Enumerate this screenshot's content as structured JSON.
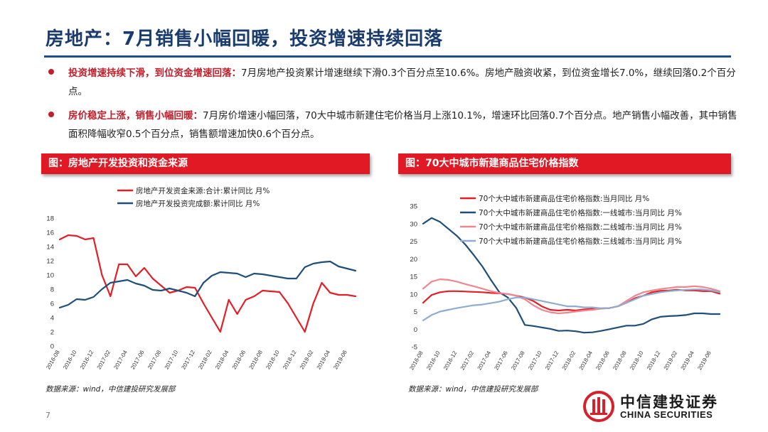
{
  "header": {
    "title": "房地产：7月销售小幅回暖，投资增速持续回落"
  },
  "bullets": [
    {
      "lead": "投资增速持续下滑，到位资金增速回落：",
      "text": "7月房地产投资累计增速继续下滑0.3个百分点至10.6%。房地产融资收紧，到位资金增长7.0%，继续回落0.2个百分点。"
    },
    {
      "lead": "房价稳定上涨，销售小幅回暖：",
      "text": "7月房价增速小幅回落，70大中城市新建住宅价格当月上涨10.1%，增速环比回落0.7个百分点。地产销售小幅改善，其中销售面积降幅收窄0.5个百分点，销售额增速加快0.6个百分点。"
    }
  ],
  "left": {
    "header": "图：房地产开发投资和资金来源",
    "source": "数据来源：wind，中信建投研究发展部"
  },
  "right": {
    "header": "图：70大中城市新建商品住宅价格指数",
    "source": "数据来源：wind，中信建投研究发展部"
  },
  "page_number": "7",
  "logo": {
    "cn": "中信建投证券",
    "en": "CHINA SECURITIES"
  },
  "colors": {
    "title": "#1a3b6e",
    "accent": "#e01925",
    "red_series": "#e41e26",
    "navy_series": "#1f4e79",
    "pink_series": "#f0868f",
    "lightblue_series": "#8eaccf"
  },
  "chart_data": [
    {
      "type": "line",
      "x": [
        "2016-08",
        "2016-09",
        "2016-10",
        "2016-11",
        "2016-12",
        "2017-01",
        "2017-02",
        "2017-03",
        "2017-04",
        "2017-05",
        "2017-06",
        "2017-07",
        "2017-08",
        "2017-09",
        "2017-10",
        "2017-11",
        "2017-12",
        "2018-01",
        "2018-02",
        "2018-03",
        "2018-04",
        "2018-05",
        "2018-06",
        "2018-07",
        "2018-08",
        "2018-09",
        "2018-10",
        "2018-11",
        "2018-12",
        "2019-01",
        "2019-02",
        "2019-03",
        "2019-04",
        "2019-05",
        "2019-06",
        "2019-07"
      ],
      "x_tick_labels": [
        "2016-08",
        "2016-10",
        "2016-12",
        "2017-02",
        "2017-04",
        "2017-06",
        "2017-08",
        "2017-10",
        "2017-12",
        "2018-02",
        "2018-04",
        "2018-06",
        "2018-08",
        "2018-10",
        "2018-12",
        "2019-02",
        "2019-04",
        "2019-06"
      ],
      "ylim": [
        0,
        18
      ],
      "y_ticks": [
        0,
        2,
        4,
        6,
        8,
        10,
        12,
        14,
        16,
        18
      ],
      "legend_position": "top",
      "series": [
        {
          "name": "房地产开发资金来源:合计:累计同比 月%",
          "color": "#e41e26",
          "values": [
            15.0,
            15.6,
            15.5,
            15.0,
            15.2,
            10.0,
            7.0,
            11.5,
            11.5,
            9.8,
            11.0,
            9.5,
            8.5,
            7.5,
            7.8,
            8.3,
            8.2,
            6.0,
            4.0,
            2.0,
            6.5,
            4.5,
            6.5,
            7.0,
            7.8,
            7.7,
            7.6,
            6.0,
            4.0,
            2.0,
            6.0,
            8.9,
            7.5,
            7.2,
            7.2,
            7.0
          ]
        },
        {
          "name": "房地产开发投资完成额:累计同比 月%",
          "color": "#1f4e79",
          "values": [
            5.4,
            5.8,
            6.6,
            6.5,
            6.9,
            8.0,
            8.9,
            9.1,
            9.3,
            8.8,
            8.5,
            7.9,
            7.8,
            8.1,
            7.8,
            7.5,
            7.0,
            8.9,
            9.9,
            10.4,
            10.3,
            10.2,
            9.7,
            10.2,
            10.1,
            9.9,
            9.7,
            9.5,
            9.5,
            11.1,
            11.6,
            11.8,
            11.9,
            11.2,
            10.9,
            10.6
          ]
        }
      ]
    },
    {
      "type": "line",
      "x": [
        "2016-08",
        "2016-09",
        "2016-10",
        "2016-11",
        "2016-12",
        "2017-01",
        "2017-02",
        "2017-03",
        "2017-04",
        "2017-05",
        "2017-06",
        "2017-07",
        "2017-08",
        "2017-09",
        "2017-10",
        "2017-11",
        "2017-12",
        "2018-01",
        "2018-02",
        "2018-03",
        "2018-04",
        "2018-05",
        "2018-06",
        "2018-07",
        "2018-08",
        "2018-09",
        "2018-10",
        "2018-11",
        "2018-12",
        "2019-01",
        "2019-02",
        "2019-03",
        "2019-04",
        "2019-05",
        "2019-06",
        "2019-07"
      ],
      "x_tick_labels": [
        "2016-08",
        "2016-10",
        "2016-12",
        "2017-02",
        "2017-04",
        "2017-06",
        "2017-08",
        "2017-10",
        "2017-12",
        "2018-02",
        "2018-04",
        "2018-06",
        "2018-08",
        "2018-10",
        "2018-12",
        "2019-02",
        "2019-04",
        "2019-06"
      ],
      "ylim": [
        -5,
        35
      ],
      "y_ticks": [
        -5,
        0,
        5,
        10,
        15,
        20,
        25,
        30,
        35
      ],
      "legend_position": "top",
      "series": [
        {
          "name": "70个大中城市新建商品住宅价格指数:当月同比 月%",
          "color": "#e41e26",
          "values": [
            7.5,
            9.7,
            10.5,
            10.8,
            10.8,
            10.7,
            10.6,
            10.5,
            10.3,
            10.2,
            10.0,
            9.5,
            9.0,
            8.0,
            6.5,
            5.5,
            5.3,
            5.5,
            5.3,
            5.6,
            5.8,
            5.9,
            6.0,
            6.5,
            7.5,
            8.8,
            9.5,
            10.5,
            10.9,
            11.0,
            11.2,
            11.0,
            11.0,
            10.8,
            10.8,
            10.1
          ]
        },
        {
          "name": "70个大中城市新建商品住宅价格指数:一线城市:当月同比 月%",
          "color": "#1f4e79",
          "values": [
            30.0,
            31.6,
            30.5,
            28.5,
            26.5,
            24.0,
            21.0,
            17.8,
            14.0,
            10.5,
            9.0,
            6.0,
            1.2,
            0.9,
            0.5,
            0.1,
            -0.5,
            -0.4,
            -0.6,
            -1.0,
            -0.9,
            -0.5,
            0.0,
            0.5,
            1.0,
            1.0,
            1.5,
            2.8,
            3.5,
            3.7,
            3.8,
            4.0,
            4.5,
            4.5,
            4.3,
            4.3
          ]
        },
        {
          "name": "70个大中城市新建商品住宅价格指数:二线城市:当月同比 月%",
          "color": "#f0868f",
          "values": [
            11.5,
            13.5,
            14.2,
            14.0,
            13.5,
            12.8,
            12.2,
            11.5,
            10.8,
            10.3,
            10.0,
            9.5,
            8.5,
            6.8,
            5.5,
            4.8,
            4.5,
            4.7,
            5.0,
            5.3,
            5.5,
            5.8,
            6.0,
            6.5,
            8.0,
            9.5,
            10.5,
            11.0,
            11.4,
            11.7,
            12.0,
            12.0,
            12.2,
            12.0,
            11.5,
            10.8
          ]
        },
        {
          "name": "70个大中城市新建商品住宅价格指数:三线城市:当月同比 月%",
          "color": "#8eaccf",
          "values": [
            2.5,
            4.0,
            5.0,
            5.5,
            6.0,
            6.4,
            6.8,
            7.0,
            7.4,
            7.8,
            8.5,
            9.0,
            9.0,
            8.5,
            8.0,
            7.5,
            7.0,
            6.5,
            6.5,
            6.2,
            6.2,
            5.9,
            6.0,
            6.5,
            7.5,
            8.5,
            9.5,
            10.0,
            10.5,
            10.8,
            11.0,
            11.2,
            11.3,
            11.3,
            11.0,
            10.5
          ]
        }
      ]
    }
  ]
}
